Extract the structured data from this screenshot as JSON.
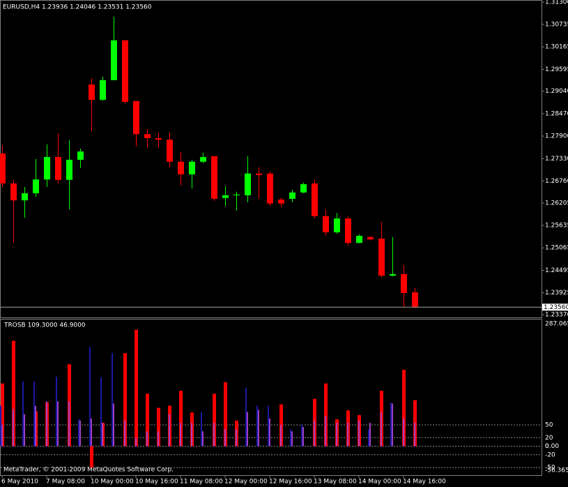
{
  "chart_data": [
    {
      "type": "candlestick",
      "title": "EURUSD,H4  1.23936 1.24046 1.23531 1.23560",
      "categories": [
        "6 May 2010",
        null,
        null,
        null,
        "7 May 08:00",
        null,
        null,
        null,
        "10 May 00:00",
        null,
        null,
        null,
        "10 May 16:00",
        null,
        null,
        null,
        "11 May 08:00",
        null,
        null,
        null,
        "12 May 00:00",
        null,
        null,
        null,
        "12 May 16:00",
        null,
        null,
        null,
        "13 May 08:00",
        null,
        null,
        null,
        "14 May 00:00",
        null,
        null,
        null,
        "14 May 16:00",
        null
      ],
      "open": [
        1.2746,
        1.267,
        1.2627,
        1.2645,
        1.268,
        1.2737,
        1.2679,
        1.273,
        1.2921,
        1.2882,
        1.2932,
        1.3033,
        1.2879,
        1.2795,
        1.2785,
        1.2781,
        1.2725,
        1.2693,
        1.2725,
        1.2739,
        1.2633,
        1.264,
        1.264,
        1.2695,
        1.2695,
        1.2629,
        1.2631,
        1.2647,
        1.267,
        1.2587,
        1.2546,
        1.2581,
        1.2519,
        1.2534,
        1.253,
        1.2436,
        1.244,
        1.23936
      ],
      "high": [
        1.2767,
        1.2679,
        1.2661,
        1.2732,
        1.2769,
        1.2797,
        1.278,
        1.2758,
        1.2937,
        1.2941,
        1.3093,
        1.3033,
        1.2879,
        1.2808,
        1.2799,
        1.2799,
        1.2749,
        1.273,
        1.2748,
        1.2739,
        1.2663,
        1.2649,
        1.2739,
        1.2711,
        1.27,
        1.2634,
        1.2654,
        1.2672,
        1.268,
        1.2604,
        1.2595,
        1.2587,
        1.2541,
        1.2537,
        1.2572,
        1.2534,
        1.2463,
        1.24046
      ],
      "low": [
        1.2661,
        1.2519,
        1.2583,
        1.2636,
        1.2661,
        1.267,
        1.2604,
        1.2709,
        1.2802,
        1.2879,
        1.2932,
        1.2873,
        1.2764,
        1.276,
        1.276,
        1.2711,
        1.2665,
        1.2657,
        1.2721,
        1.2626,
        1.2612,
        1.2601,
        1.2622,
        1.2631,
        1.2613,
        1.261,
        1.2622,
        1.2645,
        1.2581,
        1.2537,
        1.2542,
        1.2512,
        1.2518,
        1.2525,
        1.2431,
        1.2434,
        1.2357,
        1.23531
      ],
      "close": [
        1.267,
        1.2627,
        1.2645,
        1.268,
        1.2737,
        1.2679,
        1.273,
        1.2751,
        1.2882,
        1.2932,
        1.3033,
        1.2877,
        1.2795,
        1.2785,
        1.2781,
        1.2725,
        1.2693,
        1.2725,
        1.2737,
        1.2631,
        1.264,
        1.2642,
        1.2695,
        1.2691,
        1.2619,
        1.2619,
        1.2647,
        1.2668,
        1.2587,
        1.2546,
        1.2581,
        1.2519,
        1.2537,
        1.2528,
        1.2436,
        1.244,
        1.2392,
        1.2356
      ],
      "up_color": "#00ff00",
      "down_color": "#ff0000",
      "ylim": [
        1.2337,
        1.313
      ],
      "yticks": [
        {
          "value": 1.313,
          "label": "1.31300"
        },
        {
          "value": 1.30735,
          "label": "1.30735"
        },
        {
          "value": 1.30165,
          "label": "1.30165"
        },
        {
          "value": 1.29595,
          "label": "1.29595"
        },
        {
          "value": 1.2904,
          "label": "1.29040"
        },
        {
          "value": 1.2847,
          "label": "1.28470"
        },
        {
          "value": 1.279,
          "label": "1.27900"
        },
        {
          "value": 1.2733,
          "label": "1.27330"
        },
        {
          "value": 1.2676,
          "label": "1.26760"
        },
        {
          "value": 1.26205,
          "label": "1.26205"
        },
        {
          "value": 1.25635,
          "label": "1.25635"
        },
        {
          "value": 1.25065,
          "label": "1.25065"
        },
        {
          "value": 1.24495,
          "label": "1.24495"
        },
        {
          "value": 1.23925,
          "label": "1.23925"
        },
        {
          "value": 1.2337,
          "label": "1.23370"
        }
      ],
      "current_price": {
        "value": 1.2356,
        "label": "1.23560"
      }
    },
    {
      "type": "bar",
      "title": "TROSB 109.3000 46.9000",
      "series": [
        {
          "color": "#ff0000",
          "values": [
            147,
            247,
            0,
            82,
            103,
            0,
            192,
            0,
            -50,
            55,
            0,
            218,
            273,
            123,
            90,
            95,
            130,
            79,
            0,
            123,
            150,
            60,
            0,
            0,
            0,
            98,
            0,
            0,
            111,
            147,
            63,
            84,
            73,
            0,
            130,
            0,
            179,
            108
          ]
        },
        {
          "color": "#1a1aa8",
          "values": [
            95,
            0,
            152,
            152,
            0,
            163,
            0,
            63,
            232,
            161,
            218,
            0,
            0,
            0,
            0,
            0,
            0,
            0,
            80,
            0,
            0,
            0,
            137,
            95,
            95,
            0,
            40,
            50,
            0,
            0,
            0,
            0,
            0,
            40,
            0,
            102,
            0,
            0
          ]
        },
        {
          "color": "#a040c0",
          "values": [
            50,
            87,
            75,
            95,
            105,
            105,
            105,
            60,
            65,
            55,
            100,
            60,
            20,
            35,
            35,
            75,
            55,
            55,
            35,
            55,
            40,
            40,
            80,
            85,
            65,
            50,
            35,
            45,
            60,
            70,
            55,
            55,
            60,
            55,
            80,
            100,
            65,
            55
          ]
        }
      ],
      "ylim": [
        -56.365,
        287.065
      ],
      "yticks": [
        287.065,
        50,
        20,
        0,
        {
          "value": 0,
          "label": "0.00"
        },
        -20,
        -50,
        -56.365
      ]
    }
  ],
  "watermark": "MetaTrader, © 2001-2009 MetaQuotes Software Corp."
}
